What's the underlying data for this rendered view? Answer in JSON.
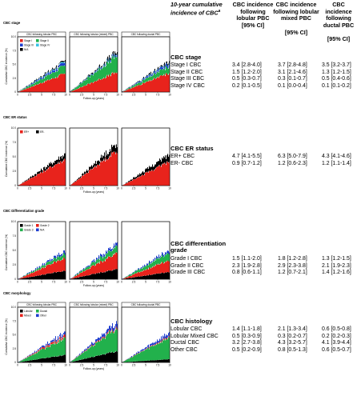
{
  "table": {
    "header_lead": "10-year cumulative incidence of CBC",
    "header_lead_sup": "a",
    "col1": "CBC incidence following lobular PBC",
    "col2": "CBC incidence following lobular mixed PBC",
    "col3": "CBC incidence following ductal PBC",
    "ci_label": "[95% CI]",
    "sections": [
      {
        "title": "CBC stage",
        "rows": [
          {
            "label": "Stage I CBC",
            "c1": "3.4 [2.8-4.0]",
            "c2": "3.7 [2.8-4.8]",
            "c3": "3.5 [3.2-3.7]"
          },
          {
            "label": "Stage II CBC",
            "c1": "1.5 [1.2-2.0]",
            "c2": "3.1 [2.1-4.6]",
            "c3": "1.3 [1.2-1.5]"
          },
          {
            "label": "Stage III CBC",
            "c1": "0.5 [0.3-0.7]",
            "c2": "0.3 [0.1-0.7]",
            "c3": "0.5 [0.4-0.6]"
          },
          {
            "label": "Stage IV CBC",
            "c1": "0.2 [0.1-0.5]",
            "c2": "0.1 [0.0-0.4]",
            "c3": "0.1 [0.1-0.2]"
          }
        ]
      },
      {
        "title": "CBC ER status",
        "rows": [
          {
            "label": "ER+ CBC",
            "c1": "4.7 [4.1-5.5]",
            "c2": "6.3 [5.0-7.9]",
            "c3": "4.3 [4.1-4.6]"
          },
          {
            "label": "ER- CBC",
            "c1": "0.9 [0.7-1.2]",
            "c2": "1.2 [0.6-2.3]",
            "c3": "1.2 [1.1-1.4]"
          }
        ]
      },
      {
        "title": "CBC differentiation grade",
        "rows": [
          {
            "label": "Grade I CBC",
            "c1": "1.5 [1.1-2.0]",
            "c2": "1.8 [1.2-2.8]",
            "c3": "1.3 [1.2-1.5]"
          },
          {
            "label": "Grade II CBC",
            "c1": "2.3 [1.9-2.8]",
            "c2": "2.9 [2.3-3.8]",
            "c3": "2.1 [1.9-2.3]"
          },
          {
            "label": "Grade III CBC",
            "c1": "0.8 [0.6-1.1]",
            "c2": "1.2 [0.7-2.1]",
            "c3": "1.4 [1.2-1.6]"
          }
        ]
      },
      {
        "title": "CBC histology",
        "rows": [
          {
            "label": "Lobular CBC",
            "c1": "1.4 [1.1-1.8]",
            "c2": "2.1 [1.3-3.4]",
            "c3": "0.6 [0.5-0.8]"
          },
          {
            "label": "Lobular Mixed CBC",
            "c1": "0.5 [0.3-0.9]",
            "c2": "0.3 [0.2-0.7]",
            "c3": "0.2 [0.2-0.3]"
          },
          {
            "label": "Ductal CBC",
            "c1": "3.2 [2.7-3.8]",
            "c2": "4.3 [3.2-5.7]",
            "c3": "4.1 [3.9-4.4]"
          },
          {
            "label": "Other CBC",
            "c1": "0.5 [0.2-0.9]",
            "c2": "0.8 [0.5-1.3]",
            "c3": "0.6 [0.5-0.7]"
          }
        ]
      }
    ]
  },
  "chart_data": [
    {
      "type": "area",
      "title": "CBC stage",
      "facets": [
        "CBC following lobular PBC",
        "CBC following lobular (mixed) PBC",
        "CBC following ductal PBC"
      ],
      "xlabel": "Follow-up (years)",
      "ylabel": "Cumulative CBC incidence (%)",
      "xlim": [
        0,
        10
      ],
      "ylim": [
        0,
        10
      ],
      "xticks": [
        "0",
        "2.5",
        "5",
        "7.5",
        "10"
      ],
      "yticks": [
        "0",
        "2.5",
        "5.0",
        "7.5",
        "10.0"
      ],
      "legend_position": "top-left",
      "series": [
        {
          "name": "Stage I",
          "color": "#e8231c",
          "values": [
            [
              3.4
            ],
            [
              3.7
            ],
            [
              3.5
            ]
          ]
        },
        {
          "name": "Stage II",
          "color": "#22b14c",
          "values": [
            [
              1.5
            ],
            [
              3.1
            ],
            [
              1.3
            ]
          ]
        },
        {
          "name": "Stage III",
          "color": "#1f3fcf",
          "values": [
            [
              0.5
            ],
            [
              0.3
            ],
            [
              0.5
            ]
          ]
        },
        {
          "name": "Stage IV",
          "color": "#39c2e6",
          "values": [
            [
              0.2
            ],
            [
              0.1
            ],
            [
              0.1
            ]
          ]
        },
        {
          "name": "N/A",
          "color": "#000000",
          "values": [
            [
              0.2
            ],
            [
              0.3
            ],
            [
              0.2
            ]
          ]
        }
      ]
    },
    {
      "type": "area",
      "title": "CBC ER status",
      "facets": [],
      "xlabel": "Follow-up (years)",
      "ylabel": "Cumulative CBC incidence (%)",
      "xlim": [
        0,
        10
      ],
      "ylim": [
        0,
        10
      ],
      "xticks": [
        "0",
        "2.5",
        "5",
        "7.5",
        "10"
      ],
      "yticks": [
        "0",
        "2.5",
        "5.0",
        "7.5",
        "10.0"
      ],
      "legend_position": "top-left",
      "series": [
        {
          "name": "ER+",
          "color": "#e8231c",
          "values": [
            [
              4.7
            ],
            [
              6.3
            ],
            [
              4.3
            ]
          ]
        },
        {
          "name": "ER-",
          "color": "#000000",
          "values": [
            [
              0.9
            ],
            [
              1.2
            ],
            [
              1.2
            ]
          ]
        }
      ]
    },
    {
      "type": "area",
      "title": "CBC Differentiation grade",
      "facets": [],
      "xlabel": "Follow-up (years)",
      "ylabel": "Cumulative CBC incidence (%)",
      "xlim": [
        0,
        10
      ],
      "ylim": [
        0,
        10
      ],
      "xticks": [
        "0",
        "2.5",
        "5",
        "7.5",
        "10"
      ],
      "yticks": [
        "0",
        "2.5",
        "5.0",
        "7.5",
        "10.0"
      ],
      "legend_position": "top-left",
      "series": [
        {
          "name": "Grade 1",
          "color": "#000000",
          "values": [
            [
              1.5
            ],
            [
              1.8
            ],
            [
              1.3
            ]
          ]
        },
        {
          "name": "Grade 2",
          "color": "#e8231c",
          "values": [
            [
              2.3
            ],
            [
              2.9
            ],
            [
              2.1
            ]
          ]
        },
        {
          "name": "Grade 3",
          "color": "#22b14c",
          "values": [
            [
              0.8
            ],
            [
              1.2
            ],
            [
              1.4
            ]
          ]
        },
        {
          "name": "N/A",
          "color": "#1f3fcf",
          "values": [
            [
              0.4
            ],
            [
              0.5
            ],
            [
              0.4
            ]
          ]
        }
      ]
    },
    {
      "type": "area",
      "title": "CBC morphology",
      "facets": [
        "CBC following lobular PBC",
        "CBC following lobular (mixed) PBC",
        "CBC following ductal PBC"
      ],
      "xlabel": "Follow-up (years)",
      "ylabel": "Cumulative CBC incidence (%)",
      "xlim": [
        0,
        10
      ],
      "ylim": [
        0,
        10
      ],
      "xticks": [
        "0",
        "2.5",
        "5",
        "7.5",
        "10"
      ],
      "yticks": [
        "0",
        "2.5",
        "5.0",
        "7.5",
        "10.0"
      ],
      "legend_position": "top-left",
      "series": [
        {
          "name": "Lobular",
          "color": "#000000",
          "values": [
            [
              1.4
            ],
            [
              2.1
            ],
            [
              0.6
            ]
          ]
        },
        {
          "name": "Ductal",
          "color": "#22b14c",
          "values": [
            [
              3.2
            ],
            [
              4.3
            ],
            [
              4.1
            ]
          ]
        },
        {
          "name": "Mixed",
          "color": "#e8231c",
          "values": [
            [
              0.5
            ],
            [
              0.3
            ],
            [
              0.2
            ]
          ]
        },
        {
          "name": "Other",
          "color": "#1f3fcf",
          "values": [
            [
              0.5
            ],
            [
              0.8
            ],
            [
              0.6
            ]
          ]
        }
      ]
    }
  ]
}
